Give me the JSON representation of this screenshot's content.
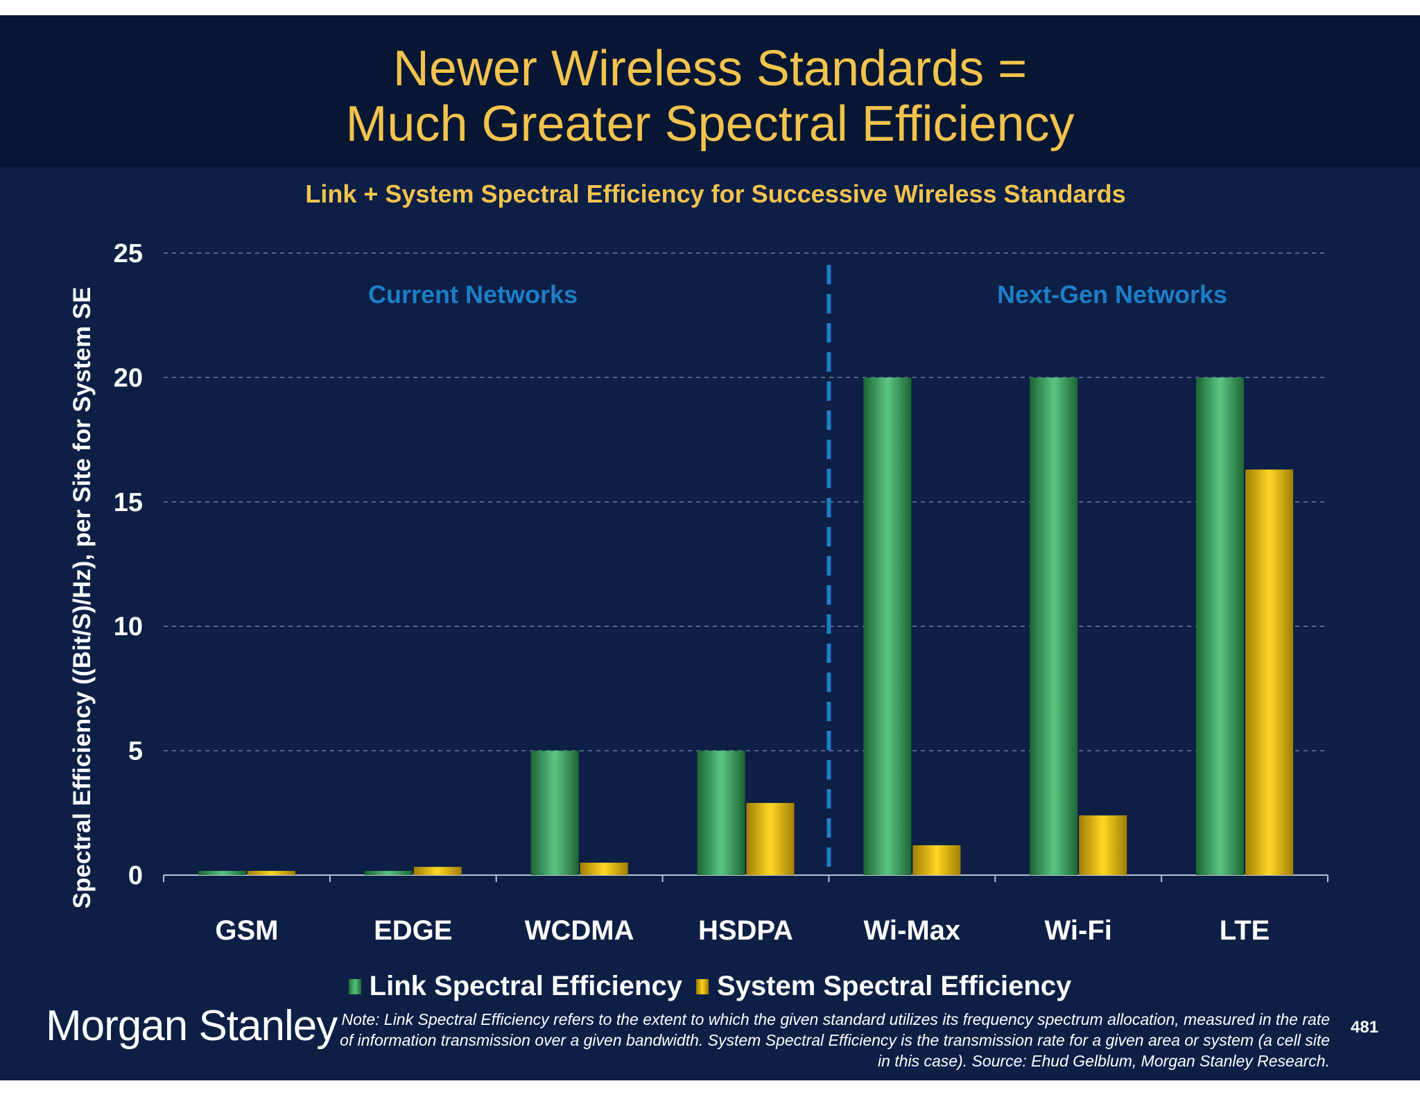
{
  "slide": {
    "title_line1": "Newer Wireless Standards =",
    "title_line2": "Much Greater Spectral Efficiency",
    "subtitle": "Link + System Spectral Efficiency for Successive Wireless Standards",
    "logo_text": "Morgan Stanley",
    "note": "Note: Link Spectral Efficiency refers to the extent to which the given standard utilizes its frequency spectrum allocation, measured in the rate of information transmission over a given bandwidth. System Spectral Efficiency is the transmission rate for a given area or system (a cell site in this case). Source: Ehud Gelblum, Morgan Stanley Research.",
    "page_number": "481"
  },
  "chart_data": {
    "type": "bar",
    "title": "Link + System Spectral Efficiency for Successive Wireless Standards",
    "ylabel": "Spectral Efficiency ((Bit/S)/Hz), per Site for System SE",
    "xlabel": "",
    "ylim": [
      0,
      25
    ],
    "yticks": [
      0,
      5,
      10,
      15,
      20,
      25
    ],
    "grid": true,
    "legend_position": "bottom",
    "categories": [
      "GSM",
      "EDGE",
      "WCDMA",
      "HSDPA",
      "Wi-Max",
      "Wi-Fi",
      "LTE"
    ],
    "series": [
      {
        "name": "Link Spectral Efficiency",
        "color": "#3f9f5e",
        "values": [
          0.17,
          0.17,
          5,
          5,
          20,
          20,
          20
        ]
      },
      {
        "name": "System Spectral Efficiency",
        "color": "#f2c600",
        "values": [
          0.17,
          0.33,
          0.5,
          2.9,
          1.2,
          2.4,
          16.3
        ]
      }
    ],
    "annotations": [
      "Current Networks",
      "Next-Gen Networks"
    ],
    "annotation_color": "#1e7ec8",
    "divider": "dashed line between HSDPA and Wi-Max"
  }
}
